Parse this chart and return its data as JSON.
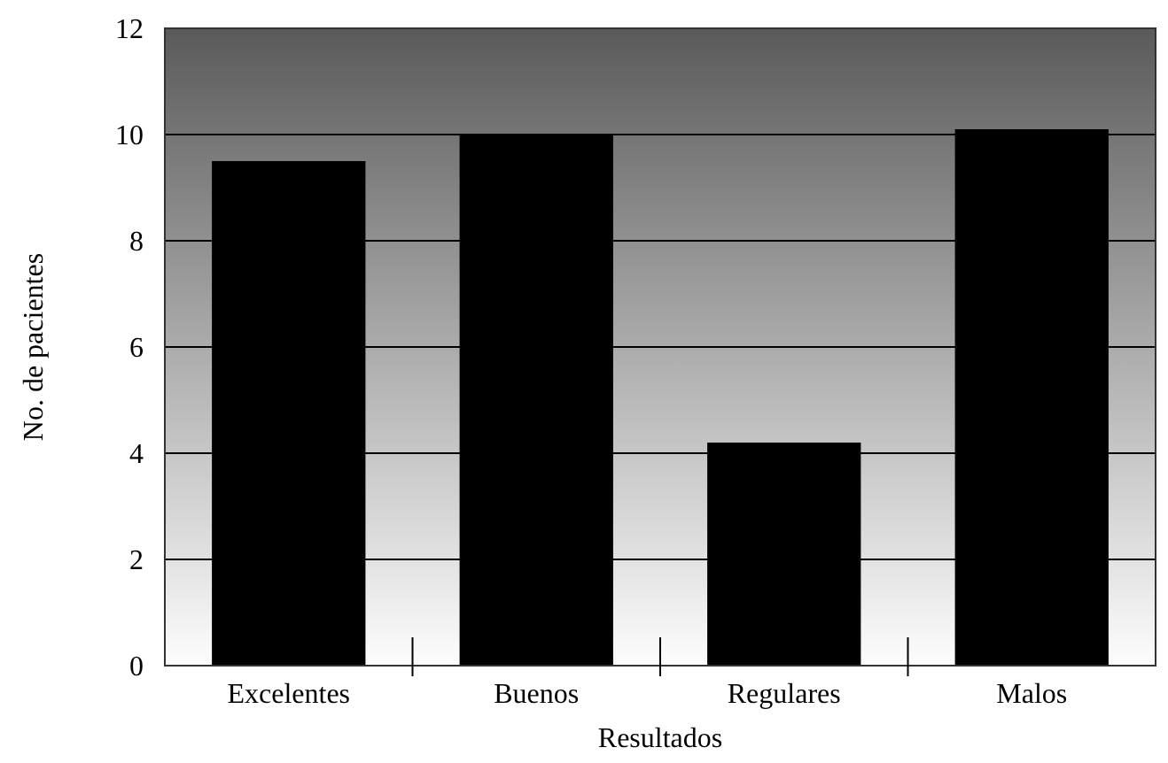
{
  "chart_data": {
    "type": "bar",
    "xlabel": "Resultados",
    "ylabel": "No. de pacientes",
    "categories": [
      "Excelentes",
      "Buenos",
      "Regulares",
      "Malos"
    ],
    "values": [
      9.5,
      10,
      4.2,
      10.1
    ],
    "color": "#000000",
    "ylim": [
      0,
      12
    ],
    "yticks": [
      0,
      2,
      4,
      6,
      8,
      10,
      12
    ],
    "grid": "y"
  }
}
